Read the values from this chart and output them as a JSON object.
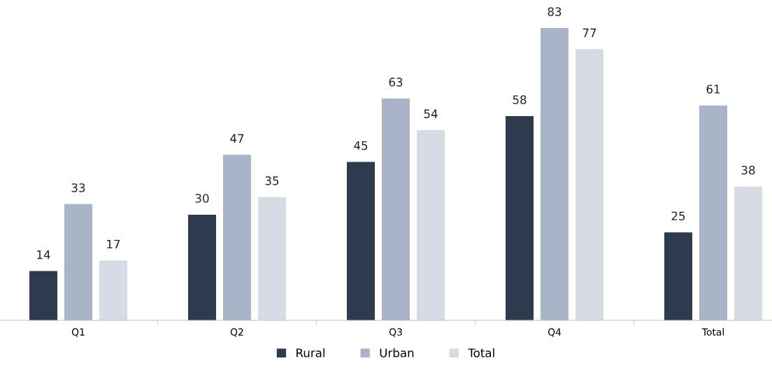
{
  "chart_data": {
    "type": "bar",
    "categories": [
      "Q1",
      "Q2",
      "Q3",
      "Q4",
      "Total"
    ],
    "series": [
      {
        "name": "Rural",
        "color": "#2e3a4e",
        "values": [
          14,
          30,
          45,
          58,
          25
        ]
      },
      {
        "name": "Urban",
        "color": "#a9b4c8",
        "values": [
          33,
          47,
          63,
          83,
          61
        ]
      },
      {
        "name": "Total",
        "color": "#d6dbe4",
        "values": [
          17,
          35,
          54,
          77,
          38
        ]
      }
    ],
    "data_labels": true,
    "relative": false,
    "grid": false,
    "legend": "bottom"
  }
}
